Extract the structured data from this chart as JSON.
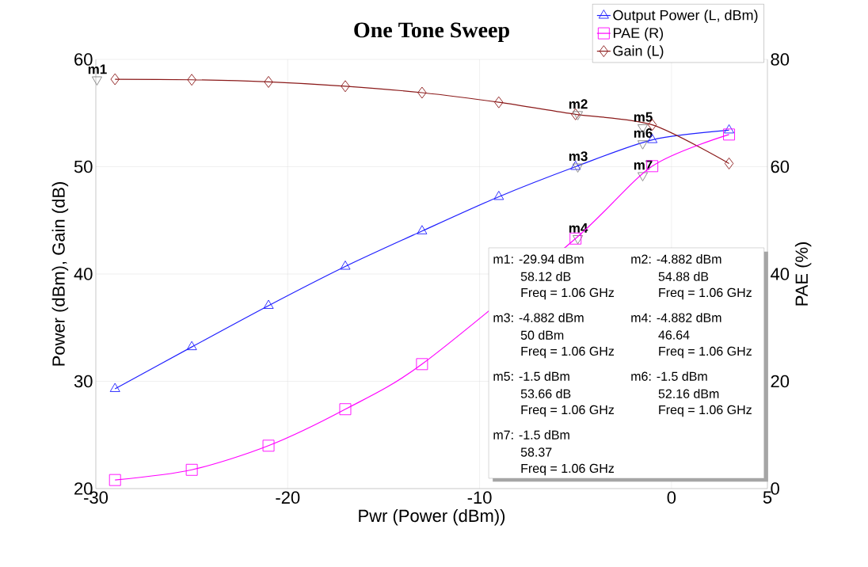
{
  "chart_data": {
    "type": "line",
    "title": "One Tone Sweep",
    "xlabel": "Pwr (Power (dBm))",
    "ylabel": "Power (dBm), Gain (dB)",
    "y2label": "PAE (%)",
    "x": [
      -29,
      -25,
      -21,
      -17,
      -13,
      -9,
      -5,
      -1,
      3
    ],
    "series": [
      {
        "name": "Output Power (L, dBm)",
        "color": "#2020ff",
        "marker": "triangle",
        "values": [
          29.3,
          33.2,
          37.05,
          40.7,
          44.0,
          47.2,
          50,
          52.5,
          53.4
        ]
      },
      {
        "name": "PAE (R)",
        "color": "#ff00ff",
        "marker": "square",
        "axis": "y2",
        "x": [
          -29,
          -25,
          -21,
          -17,
          -13,
          -5,
          -1,
          3
        ],
        "values": [
          1.6,
          3.5,
          8.0,
          14.8,
          23.2,
          46.6,
          60.1,
          66.0
        ]
      },
      {
        "name": "Gain (L)",
        "color": "#8b1a1a",
        "marker": "diamond",
        "values": [
          58.15,
          58.1,
          57.9,
          57.5,
          56.9,
          56.0,
          54.88,
          53.9,
          50.3
        ]
      },
      {
        "type": "scatter",
        "color": "#808080",
        "marker": "triangle",
        "x": [
          -29.94,
          -4.882,
          -4.882,
          -4.882,
          -1.5,
          -1.5,
          -1.5
        ],
        "values": [
          58.12,
          54.88,
          50,
          43.32,
          53.66,
          52.16,
          49.19
        ],
        "value_labels": [
          "m1",
          "m2",
          "m3",
          "m4",
          "m5",
          "m6",
          "m7"
        ]
      }
    ],
    "xlim": [
      -30,
      5
    ],
    "xticks": [
      -30,
      -20,
      -10,
      0,
      5
    ],
    "ylim": [
      20,
      60
    ],
    "yticks": [
      20,
      30,
      40,
      50,
      60
    ],
    "y2lim": [
      0,
      80
    ],
    "y2ticks": [
      0,
      20,
      40,
      60,
      80
    ],
    "grid": true,
    "legend": "top right",
    "annotations": [
      "m1: -29.94 dBm",
      "58.12 dB",
      "Freq = 1.06 GHz",
      "m2: -4.882 dBm",
      "54.88 dB",
      "Freq = 1.06 GHz",
      "m3: -4.882 dBm",
      "50 dBm",
      "Freq = 1.06 GHz",
      "m4: -4.882 dBm",
      "46.64",
      "Freq = 1.06 GHz",
      "m5: -1.5 dBm",
      "53.66 dB",
      "Freq = 1.06 GHz",
      "m6: -1.5 dBm",
      "52.16 dBm",
      "Freq = 1.06 GHz",
      "m7: -1.5 dBm",
      "58.37",
      "Freq = 1.06 GHz"
    ]
  }
}
